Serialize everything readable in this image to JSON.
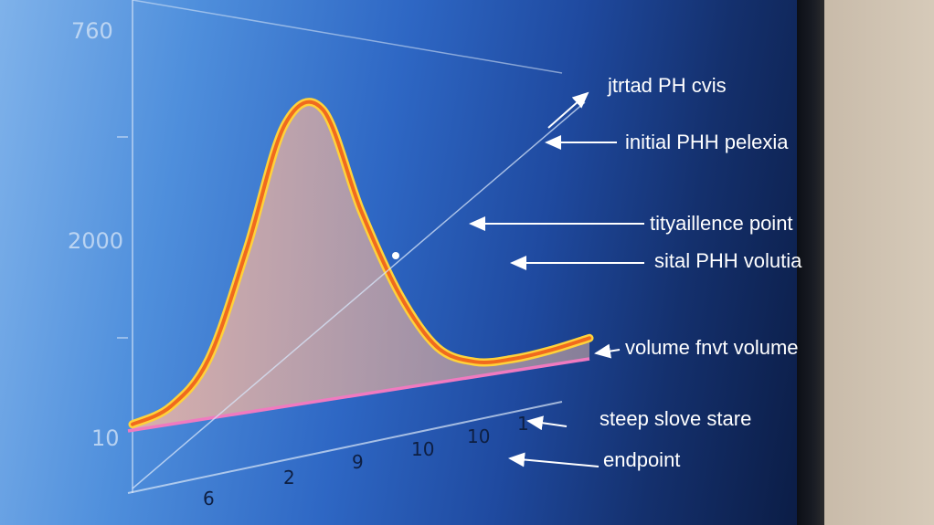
{
  "chart_data": {
    "type": "line",
    "title": "",
    "xlabel": "",
    "ylabel": "",
    "y_tick_labels": [
      "760",
      "2000",
      "10"
    ],
    "x_tick_labels": [
      "6",
      "2",
      "9",
      "10",
      "10",
      "1"
    ],
    "series": [
      {
        "values_description": "single peaked curve with shaded area beneath",
        "x": [
          0,
          1,
          2,
          3,
          4,
          5,
          6,
          7,
          8,
          9,
          10,
          11,
          12
        ],
        "y": [
          0.02,
          0.06,
          0.2,
          0.55,
          0.95,
          0.98,
          0.62,
          0.32,
          0.12,
          0.05,
          0.04,
          0.05,
          0.07
        ]
      }
    ],
    "annotations": [
      "jtrtad PH cvis",
      "initial PHH pelexia",
      "tityaillence point",
      "sital PHH volutia",
      "volume fnvt volume",
      "steep slove stare",
      "endpoint"
    ],
    "grid": false,
    "colors": {
      "curve": "#f28a23",
      "curve_outer": "#ffd23a",
      "fill": "#d8aea4",
      "baseline": "#f07ac0",
      "guide": "#cfe0f5"
    }
  }
}
